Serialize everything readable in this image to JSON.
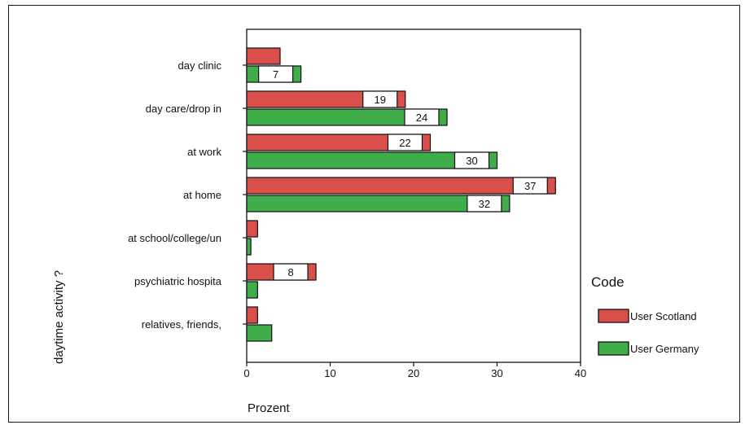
{
  "chart_data": {
    "type": "bar",
    "orientation": "horizontal",
    "categories": [
      "day clinic",
      "day care/drop in",
      "at work",
      "at home",
      "at school/college/un",
      "psychiatric hospita",
      "relatives, friends,"
    ],
    "series": [
      {
        "name": "User Scotland",
        "color": "#d9504a",
        "values": [
          4,
          19,
          22,
          37,
          1.3,
          8.3,
          1.3
        ],
        "labels": [
          "",
          "19",
          "22",
          "37",
          "",
          "8",
          ""
        ]
      },
      {
        "name": "User Germany",
        "color": "#3fae4a",
        "values": [
          6.5,
          24,
          30,
          31.5,
          0.5,
          1.3,
          3
        ],
        "labels": [
          "7",
          "24",
          "30",
          "32",
          "",
          "",
          ""
        ]
      }
    ],
    "xlabel": "Prozent",
    "ylabel": "daytime activity ?",
    "xlim": [
      0,
      40
    ],
    "xticks": [
      "0",
      "10",
      "20",
      "30",
      "40"
    ],
    "legend": {
      "title": "Code",
      "position": "right"
    },
    "grid": false
  }
}
